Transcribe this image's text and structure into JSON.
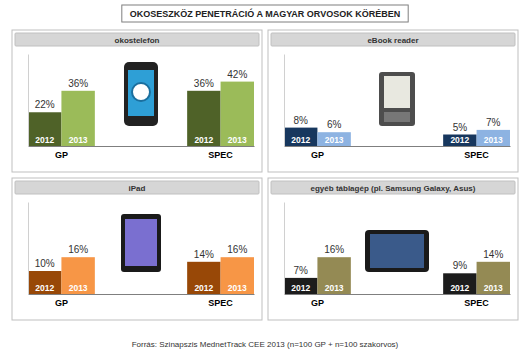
{
  "title": "OKOSESZKÖZ PENETRÁCIÓ A MAGYAR ORVOSOK KÖRÉBEN",
  "source": "Forrás: Szinapszis MednetTrack CEE 2013 (n=100 GP + n=100 szakorvos)",
  "chart_data": [
    {
      "type": "bar",
      "title": "okostelefon",
      "categories": [
        "GP",
        "SPEC"
      ],
      "series": [
        {
          "name": "2012",
          "color": "#4f6228",
          "values": [
            22,
            36
          ],
          "value_labels": [
            "22%",
            "36%"
          ]
        },
        {
          "name": "2013",
          "color": "#9bbb59",
          "values": [
            36,
            42
          ],
          "value_labels": [
            "36%",
            "42%"
          ]
        }
      ],
      "ylim": [
        0,
        60
      ],
      "tick_labels": "x",
      "data_labels": true
    },
    {
      "type": "bar",
      "title": "eBook reader",
      "categories": [
        "GP",
        "SPEC"
      ],
      "series": [
        {
          "name": "2012",
          "color": "#17375e",
          "values": [
            8,
            5
          ],
          "value_labels": [
            "8%",
            "5%"
          ]
        },
        {
          "name": "2013",
          "color": "#8db3e2",
          "values": [
            6,
            7
          ],
          "value_labels": [
            "6%",
            "7%"
          ]
        }
      ],
      "ylim": [
        0,
        40
      ],
      "tick_labels": "x",
      "data_labels": true
    },
    {
      "type": "bar",
      "title": "iPad",
      "categories": [
        "GP",
        "SPEC"
      ],
      "series": [
        {
          "name": "2012",
          "color": "#984807",
          "values": [
            10,
            14
          ],
          "value_labels": [
            "10%",
            "14%"
          ]
        },
        {
          "name": "2013",
          "color": "#f79646",
          "values": [
            16,
            16
          ],
          "value_labels": [
            "16%",
            "16%"
          ]
        }
      ],
      "ylim": [
        0,
        40
      ],
      "tick_labels": "x",
      "data_labels": true
    },
    {
      "type": "bar",
      "title": "egyéb táblagép (pl. Samsung Galaxy, Asus)",
      "categories": [
        "GP",
        "SPEC"
      ],
      "series": [
        {
          "name": "2012",
          "color": "#1c1c1c",
          "values": [
            7,
            9
          ],
          "value_labels": [
            "7%",
            "9%"
          ]
        },
        {
          "name": "2013",
          "color": "#948a54",
          "values": [
            16,
            14
          ],
          "value_labels": [
            "16%",
            "14%"
          ]
        }
      ],
      "ylim": [
        0,
        40
      ],
      "tick_labels": "x",
      "data_labels": true
    }
  ]
}
